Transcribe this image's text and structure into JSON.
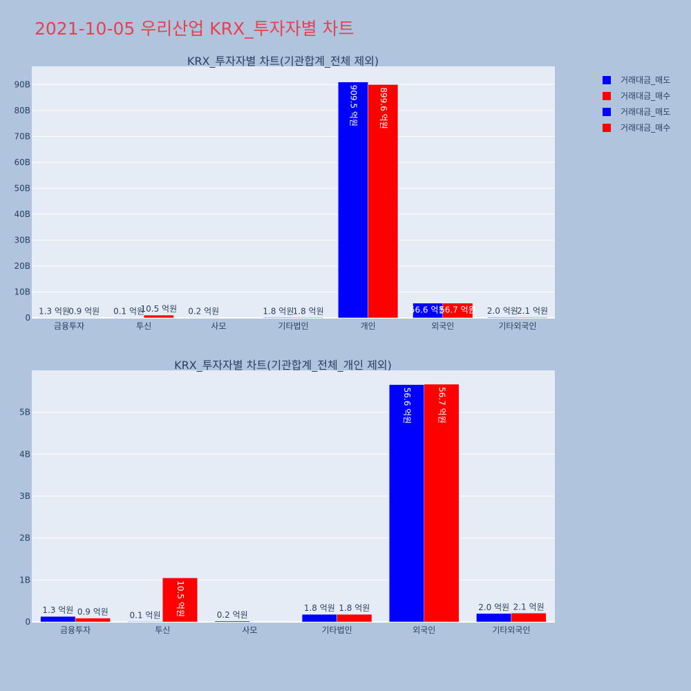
{
  "title": "2021-10-05 우리산업 KRX_투자자별 차트",
  "colors": {
    "sell": "#0000ff",
    "buy": "#ff0000",
    "title": "#e8404f",
    "background": "#b0c4de",
    "plot": "#e5ecf6"
  },
  "legend": [
    {
      "label": "거래대금_매도",
      "color": "#0000ff"
    },
    {
      "label": "거래대금_매수",
      "color": "#ff0000"
    },
    {
      "label": "거래대금_매도",
      "color": "#0000ff"
    },
    {
      "label": "거래대금_매수",
      "color": "#ff0000"
    }
  ],
  "chart_data": [
    {
      "type": "bar",
      "title": "KRX_투자자별 차트(기관합계_전체 제외)",
      "categories": [
        "금융투자",
        "투신",
        "사모",
        "기타법인",
        "개인",
        "외국인",
        "기타외국인"
      ],
      "ylim": [
        0,
        97
      ],
      "yticks": [
        0,
        10,
        20,
        30,
        40,
        50,
        60,
        70,
        80,
        90
      ],
      "ytick_labels": [
        "0",
        "10B",
        "20B",
        "30B",
        "40B",
        "50B",
        "60B",
        "70B",
        "80B",
        "90B"
      ],
      "grid": true,
      "series": [
        {
          "name": "거래대금_매도",
          "color": "#0000ff",
          "values": [
            0.13,
            0.01,
            0.02,
            0.18,
            90.95,
            5.66,
            0.2
          ],
          "labels": [
            "1.3 억원",
            "0.1 억원",
            "0.2 억원",
            "1.8 억원",
            "909.5 억원",
            "56.6 억원",
            "2.0 억원"
          ]
        },
        {
          "name": "거래대금_매수",
          "color": "#ff0000",
          "values": [
            0.09,
            1.05,
            null,
            0.18,
            89.96,
            5.67,
            0.21
          ],
          "labels": [
            "0.9 억원",
            "10.5 억원",
            "",
            "1.8 억원",
            "899.6 억원",
            "56.7 억원",
            "2.1 억원"
          ]
        }
      ]
    },
    {
      "type": "bar",
      "title": "KRX_투자자별 차트(기관합계_전체_개인 제외)",
      "categories": [
        "금융투자",
        "투신",
        "사모",
        "기타법인",
        "외국인",
        "기타외국인"
      ],
      "ylim": [
        0,
        6
      ],
      "yticks": [
        0,
        1,
        2,
        3,
        4,
        5
      ],
      "ytick_labels": [
        "0",
        "1B",
        "2B",
        "3B",
        "4B",
        "5B"
      ],
      "grid": true,
      "series": [
        {
          "name": "거래대금_매도",
          "color": "#0000ff",
          "values": [
            0.13,
            0.01,
            0.02,
            0.18,
            5.66,
            0.2
          ],
          "labels": [
            "1.3 억원",
            "0.1 억원",
            "0.2 억원",
            "1.8 억원",
            "56.6 억원",
            "2.0 억원"
          ]
        },
        {
          "name": "거래대금_매수",
          "color": "#ff0000",
          "values": [
            0.09,
            1.05,
            null,
            0.18,
            5.67,
            0.21
          ],
          "labels": [
            "0.9 억원",
            "10.5 억원",
            "",
            "1.8 억원",
            "56.7 억원",
            "2.1 억원"
          ]
        }
      ]
    }
  ]
}
